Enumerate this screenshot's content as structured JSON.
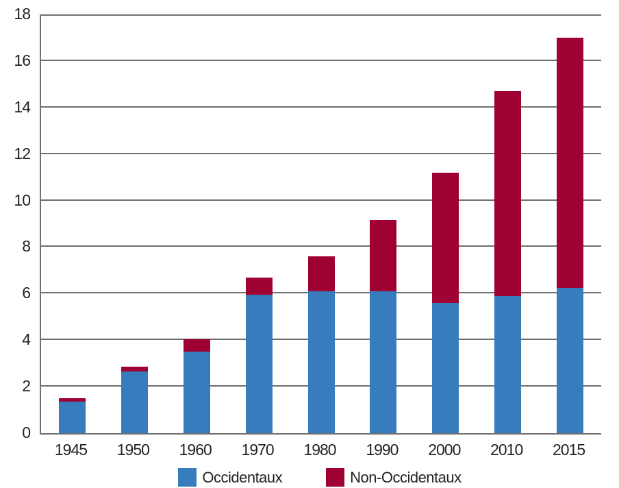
{
  "chart_data": {
    "type": "bar",
    "stacked": true,
    "title": "",
    "xlabel": "",
    "ylabel": "",
    "categories": [
      "1945",
      "1950",
      "1960",
      "1970",
      "1980",
      "1990",
      "2000",
      "2010",
      "2015"
    ],
    "series": [
      {
        "name": "Occidentaux",
        "color": "#377CBD",
        "values": [
          1.35,
          2.65,
          3.5,
          5.95,
          6.1,
          6.1,
          5.6,
          5.9,
          6.25
        ]
      },
      {
        "name": "Non-Occidentaux",
        "color": "#9F0132",
        "values": [
          0.15,
          0.2,
          0.55,
          0.75,
          1.5,
          3.05,
          5.6,
          8.8,
          10.75
        ]
      }
    ],
    "totals": [
      1.5,
      2.85,
      4.05,
      6.7,
      7.6,
      9.15,
      11.2,
      14.7,
      17.0
    ],
    "ylim": [
      0,
      18
    ],
    "ytick_step": 2,
    "yticks": [
      0,
      2,
      4,
      6,
      8,
      10,
      12,
      14,
      16,
      18
    ],
    "grid": true,
    "legend_position": "bottom"
  },
  "colors": {
    "gridline": "#6F6F6F",
    "axis": "#6F6F6F",
    "text": "#262223",
    "background": "#FFFFFF",
    "series_occidentaux": "#377CBD",
    "series_non_occidentaux": "#9F0132"
  }
}
